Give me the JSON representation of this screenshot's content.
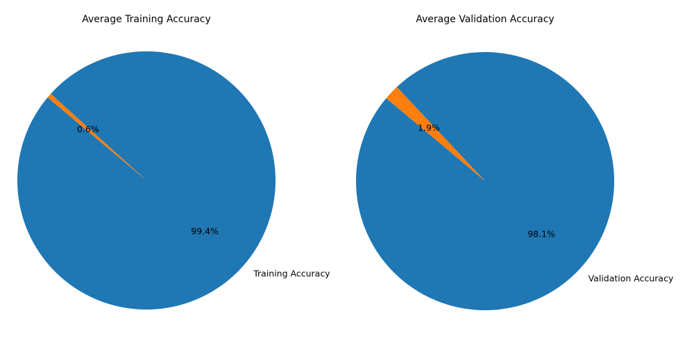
{
  "chart_data": [
    {
      "type": "pie",
      "title": "Average Training Accuracy",
      "labels": [
        "Training Accuracy",
        ""
      ],
      "values": [
        99.4,
        0.6
      ],
      "value_labels": [
        "99.4%",
        "0.6%"
      ],
      "colors": [
        "#1f77b4",
        "#ff7f0e"
      ],
      "start_angle_deg": 140
    },
    {
      "type": "pie",
      "title": "Average Validation Accuracy",
      "labels": [
        "Validation Accuracy",
        ""
      ],
      "values": [
        98.1,
        1.9
      ],
      "value_labels": [
        "98.1%",
        "1.9%"
      ],
      "colors": [
        "#1f77b4",
        "#ff7f0e"
      ],
      "start_angle_deg": 140
    }
  ]
}
